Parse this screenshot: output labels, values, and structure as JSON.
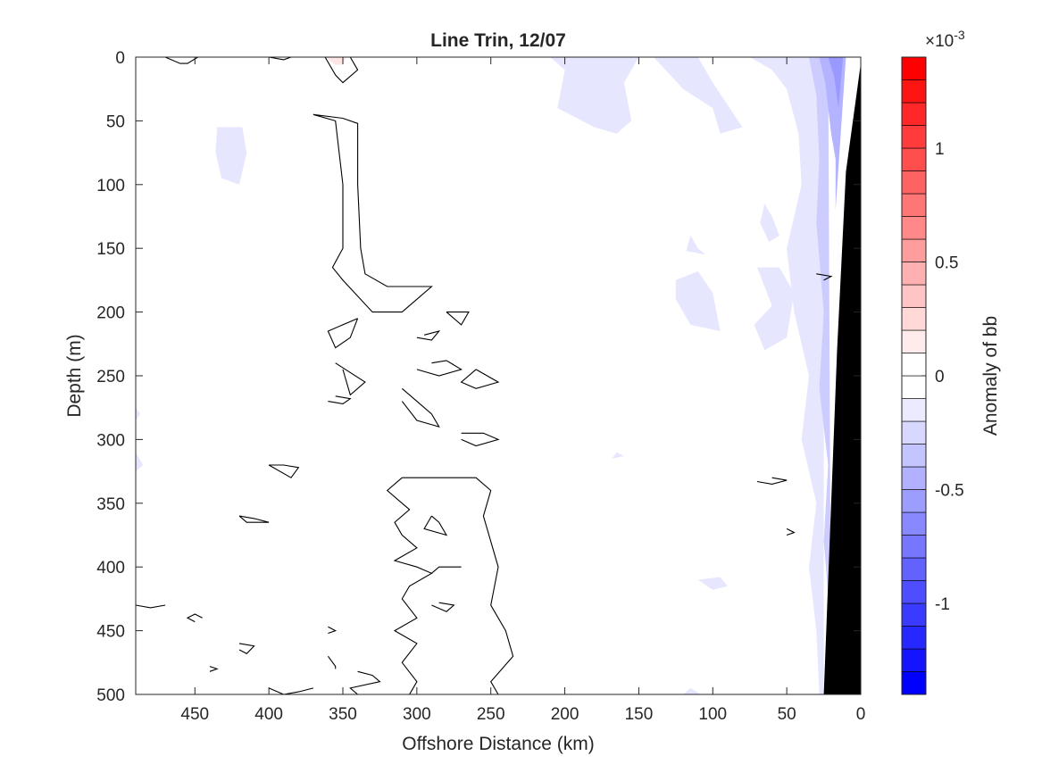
{
  "chart_data": {
    "type": "heatmap",
    "title": "Line Trin, 12/07",
    "xlabel": "Offshore Distance (km)",
    "ylabel": "Depth (m)",
    "xlim": [
      490,
      0
    ],
    "ylim": [
      0,
      500
    ],
    "x_reversed": true,
    "y_reversed": true,
    "x_ticks": [
      450,
      400,
      350,
      300,
      250,
      200,
      150,
      100,
      50,
      0
    ],
    "x_tick_labels": [
      "450",
      "400",
      "350",
      "300",
      "250",
      "200",
      "150",
      "100",
      "50",
      "0"
    ],
    "y_ticks": [
      0,
      50,
      100,
      150,
      200,
      250,
      300,
      350,
      400,
      450,
      500
    ],
    "y_tick_labels": [
      "0",
      "50",
      "100",
      "150",
      "200",
      "250",
      "300",
      "350",
      "400",
      "450",
      "500"
    ],
    "colorbar": {
      "label": "Anomaly of bb",
      "exponent": "×10",
      "exponent_power": "-3",
      "range": [
        -0.0014,
        0.0014
      ],
      "level_step": 0.0001,
      "ticks": [
        0.001,
        0.0005,
        0,
        -0.0005,
        -0.001
      ],
      "tick_labels": [
        "1",
        "0.5",
        "0",
        "-0.5",
        "-1"
      ],
      "colors": {
        "positive": "#ff0000",
        "negative": "#0000ff",
        "zero": "#ffffff"
      }
    },
    "zero_contours": [
      [
        [
          370,
          45
        ],
        [
          350,
          48
        ],
        [
          340,
          52
        ],
        [
          340,
          100
        ],
        [
          338,
          150
        ],
        [
          335,
          170
        ],
        [
          320,
          180
        ],
        [
          290,
          180
        ],
        [
          310,
          200
        ],
        [
          330,
          200
        ],
        [
          350,
          175
        ],
        [
          357,
          165
        ],
        [
          350,
          150
        ],
        [
          350,
          100
        ],
        [
          355,
          50
        ],
        [
          370,
          45
        ]
      ],
      [
        [
          362,
          0
        ],
        [
          355,
          14
        ],
        [
          350,
          20
        ],
        [
          340,
          10
        ],
        [
          345,
          0
        ]
      ],
      [
        [
          470,
          0
        ],
        [
          460,
          5
        ],
        [
          455,
          5
        ],
        [
          448,
          0
        ]
      ],
      [
        [
          400,
          0
        ],
        [
          390,
          2
        ],
        [
          385,
          0
        ]
      ],
      [
        [
          340,
          205
        ],
        [
          345,
          220
        ],
        [
          355,
          228
        ],
        [
          360,
          215
        ],
        [
          340,
          205
        ]
      ],
      [
        [
          350,
          245
        ],
        [
          345,
          265
        ],
        [
          335,
          255
        ],
        [
          355,
          240
        ]
      ],
      [
        [
          290,
          240
        ],
        [
          280,
          238
        ],
        [
          270,
          245
        ],
        [
          285,
          250
        ],
        [
          300,
          245
        ]
      ],
      [
        [
          260,
          245
        ],
        [
          270,
          255
        ],
        [
          260,
          260
        ],
        [
          245,
          255
        ],
        [
          260,
          245
        ]
      ],
      [
        [
          310,
          260
        ],
        [
          300,
          270
        ],
        [
          290,
          280
        ],
        [
          285,
          290
        ],
        [
          300,
          285
        ],
        [
          310,
          270
        ]
      ],
      [
        [
          280,
          200
        ],
        [
          275,
          205
        ],
        [
          270,
          210
        ],
        [
          265,
          200
        ],
        [
          280,
          200
        ]
      ],
      [
        [
          300,
          220
        ],
        [
          290,
          222
        ],
        [
          285,
          215
        ],
        [
          295,
          218
        ]
      ],
      [
        [
          360,
          270
        ],
        [
          350,
          272
        ],
        [
          345,
          268
        ],
        [
          355,
          266
        ]
      ],
      [
        [
          270,
          295
        ],
        [
          255,
          295
        ],
        [
          245,
          300
        ],
        [
          260,
          305
        ],
        [
          270,
          300
        ]
      ],
      [
        [
          310,
          330
        ],
        [
          290,
          330
        ],
        [
          260,
          330
        ],
        [
          250,
          340
        ],
        [
          255,
          360
        ],
        [
          245,
          400
        ],
        [
          250,
          430
        ],
        [
          240,
          450
        ],
        [
          235,
          470
        ],
        [
          250,
          490
        ],
        [
          245,
          500
        ]
      ],
      [
        [
          310,
          330
        ],
        [
          320,
          340
        ],
        [
          310,
          350
        ],
        [
          305,
          355
        ],
        [
          315,
          365
        ],
        [
          310,
          375
        ],
        [
          300,
          385
        ],
        [
          315,
          395
        ],
        [
          300,
          400
        ],
        [
          290,
          405
        ],
        [
          305,
          415
        ],
        [
          310,
          425
        ],
        [
          300,
          440
        ],
        [
          315,
          450
        ],
        [
          300,
          460
        ],
        [
          310,
          475
        ],
        [
          300,
          490
        ],
        [
          305,
          500
        ]
      ],
      [
        [
          290,
          360
        ],
        [
          285,
          365
        ],
        [
          280,
          375
        ],
        [
          295,
          370
        ],
        [
          290,
          360
        ]
      ],
      [
        [
          400,
          320
        ],
        [
          390,
          320
        ],
        [
          380,
          322
        ],
        [
          385,
          330
        ],
        [
          400,
          320
        ]
      ],
      [
        [
          420,
          360
        ],
        [
          410,
          362
        ],
        [
          400,
          365
        ],
        [
          415,
          365
        ],
        [
          420,
          360
        ]
      ],
      [
        [
          290,
          405
        ],
        [
          285,
          400
        ],
        [
          270,
          400
        ]
      ],
      [
        [
          290,
          430
        ],
        [
          280,
          435
        ],
        [
          275,
          430
        ],
        [
          285,
          428
        ]
      ],
      [
        [
          445,
          440
        ],
        [
          450,
          437
        ],
        [
          455,
          440
        ],
        [
          450,
          443
        ]
      ],
      [
        [
          420,
          460
        ],
        [
          410,
          462
        ],
        [
          415,
          468
        ],
        [
          420,
          465
        ]
      ],
      [
        [
          360,
          447
        ],
        [
          355,
          450
        ],
        [
          360,
          452
        ]
      ],
      [
        [
          360,
          470
        ],
        [
          355,
          478
        ],
        [
          355,
          480
        ]
      ],
      [
        [
          440,
          478
        ],
        [
          435,
          480
        ],
        [
          440,
          482
        ]
      ],
      [
        [
          340,
          482
        ],
        [
          330,
          485
        ],
        [
          325,
          490
        ],
        [
          345,
          495
        ],
        [
          340,
          500
        ]
      ],
      [
        [
          400,
          495
        ],
        [
          390,
          500
        ],
        [
          380,
          498
        ],
        [
          370,
          495
        ]
      ],
      [
        [
          490,
          430
        ],
        [
          480,
          432
        ],
        [
          470,
          430
        ]
      ],
      [
        [
          60,
          330
        ],
        [
          50,
          332
        ],
        [
          60,
          335
        ],
        [
          70,
          333
        ]
      ],
      [
        [
          50,
          370
        ],
        [
          45,
          373
        ],
        [
          50,
          375
        ]
      ],
      [
        [
          30,
          170
        ],
        [
          20,
          172
        ],
        [
          25,
          175
        ]
      ]
    ]
  }
}
